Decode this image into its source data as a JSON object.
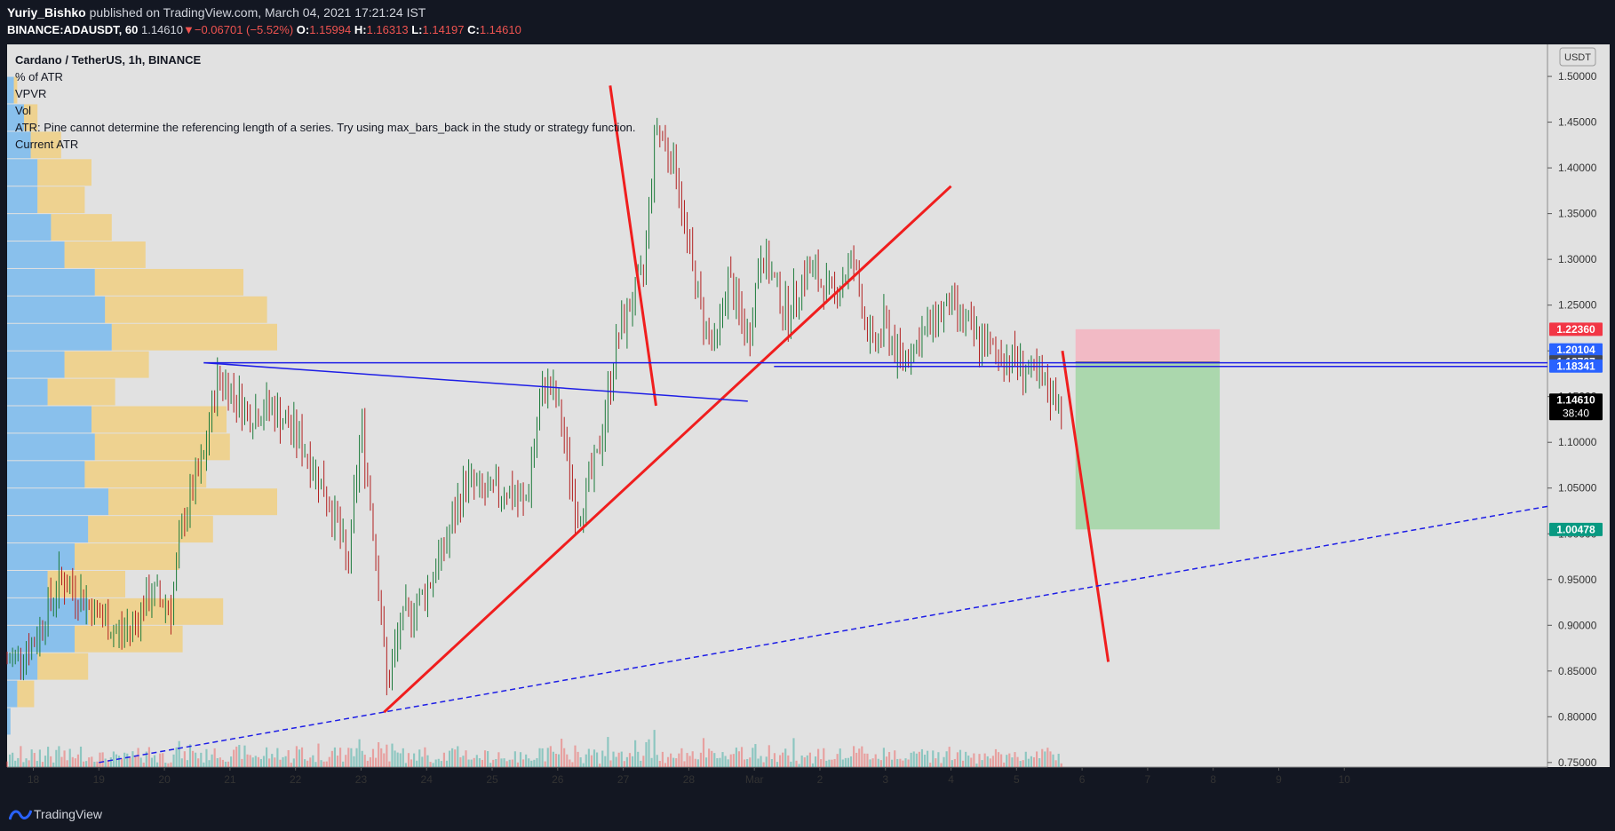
{
  "header": {
    "author": "Yuriy_Bishko",
    "published_text": "published on TradingView.com, March 04, 2021 17:21:24 IST",
    "symbol": "BINANCE:ADAUSDT, 60",
    "last_price": "1.14610",
    "change": "−0.06701 (−5.52%)",
    "o_label": "O:",
    "o_value": "1.15994",
    "h_label": "H:",
    "h_value": "1.16313",
    "l_label": "L:",
    "l_value": "1.14197",
    "c_label": "C:",
    "c_value": "1.14610"
  },
  "legend": {
    "title": "Cardano / TetherUS, 1h, BINANCE",
    "items": [
      "% of ATR",
      "VPVR",
      "Vol",
      "ATR: Pine cannot determine the referencing length of a series. Try using max_bars_back in the study or strategy function.",
      "Current ATR"
    ]
  },
  "footer": {
    "brand": "TradingView",
    "logo_icon": "tradingview-logo-icon"
  },
  "colors": {
    "background": "#e1e1e1",
    "frame": "#131722",
    "up": "#26a69a",
    "down": "#ef5350",
    "trend_red": "#f01e1e",
    "trend_blue": "#1e1ee6",
    "vpvr_up": "#42a5f5",
    "vpvr_down": "#f9c74f",
    "profit_zone": "#a5d6a7",
    "loss_zone": "#f4b6c2"
  },
  "chart_data": {
    "type": "candlestick",
    "interval": "1h",
    "y_axis": {
      "unit": "USDT",
      "range": [
        0.745,
        1.535
      ],
      "ticks": [
        "0.75000",
        "0.80000",
        "0.85000",
        "0.90000",
        "0.95000",
        "1.00000",
        "1.05000",
        "1.10000",
        "1.15000",
        "1.20000",
        "1.25000",
        "1.30000",
        "1.35000",
        "1.40000",
        "1.45000",
        "1.50000"
      ]
    },
    "x_axis": {
      "range_days": [
        17.6,
        41.1
      ],
      "ticks": [
        "18",
        "19",
        "20",
        "21",
        "22",
        "23",
        "24",
        "25",
        "26",
        "27",
        "28",
        "Mar",
        "2",
        "3",
        "4",
        "5",
        "6",
        "7",
        "8",
        "9",
        "10"
      ],
      "tick_days": [
        18,
        19,
        20,
        21,
        22,
        23,
        24,
        25,
        26,
        27,
        28,
        29,
        30,
        31,
        32,
        33,
        34,
        35,
        36,
        37,
        38
      ]
    },
    "price_path": [
      [
        17.6,
        0.86
      ],
      [
        18.0,
        0.88
      ],
      [
        18.4,
        0.95
      ],
      [
        18.7,
        0.935
      ],
      [
        19.0,
        0.91
      ],
      [
        19.3,
        0.89
      ],
      [
        19.5,
        0.9
      ],
      [
        19.8,
        0.935
      ],
      [
        20.1,
        0.92
      ],
      [
        20.3,
        1.02
      ],
      [
        20.6,
        1.08
      ],
      [
        20.8,
        1.17
      ],
      [
        21.0,
        1.16
      ],
      [
        21.3,
        1.13
      ],
      [
        21.6,
        1.14
      ],
      [
        22.0,
        1.11
      ],
      [
        22.3,
        1.07
      ],
      [
        22.6,
        1.02
      ],
      [
        22.8,
        0.96
      ],
      [
        23.0,
        1.12
      ],
      [
        23.2,
        1.0
      ],
      [
        23.4,
        0.83
      ],
      [
        23.6,
        0.9
      ],
      [
        24.0,
        0.94
      ],
      [
        24.3,
        0.99
      ],
      [
        24.6,
        1.06
      ],
      [
        24.9,
        1.04
      ],
      [
        25.2,
        1.05
      ],
      [
        25.5,
        1.03
      ],
      [
        25.8,
        1.17
      ],
      [
        26.0,
        1.14
      ],
      [
        26.3,
        1.02
      ],
      [
        26.6,
        1.08
      ],
      [
        26.9,
        1.21
      ],
      [
        27.1,
        1.25
      ],
      [
        27.3,
        1.28
      ],
      [
        27.5,
        1.45
      ],
      [
        27.8,
        1.4
      ],
      [
        28.0,
        1.31
      ],
      [
        28.2,
        1.24
      ],
      [
        28.4,
        1.2
      ],
      [
        28.6,
        1.28
      ],
      [
        28.9,
        1.21
      ],
      [
        29.1,
        1.31
      ],
      [
        29.5,
        1.24
      ],
      [
        29.8,
        1.29
      ],
      [
        30.2,
        1.26
      ],
      [
        30.5,
        1.3
      ],
      [
        30.8,
        1.2
      ],
      [
        31.0,
        1.23
      ],
      [
        31.2,
        1.19
      ],
      [
        31.5,
        1.21
      ],
      [
        31.8,
        1.24
      ],
      [
        32.0,
        1.25
      ],
      [
        32.3,
        1.22
      ],
      [
        32.6,
        1.2
      ],
      [
        33.0,
        1.19
      ],
      [
        33.4,
        1.16
      ],
      [
        33.7,
        1.146
      ]
    ],
    "volume_profile": [
      {
        "price": 1.485,
        "up": 0.02,
        "down": 0.01
      },
      {
        "price": 1.455,
        "up": 0.05,
        "down": 0.04
      },
      {
        "price": 1.425,
        "up": 0.07,
        "down": 0.09
      },
      {
        "price": 1.395,
        "up": 0.09,
        "down": 0.16
      },
      {
        "price": 1.365,
        "up": 0.09,
        "down": 0.14
      },
      {
        "price": 1.335,
        "up": 0.13,
        "down": 0.18
      },
      {
        "price": 1.305,
        "up": 0.17,
        "down": 0.24
      },
      {
        "price": 1.275,
        "up": 0.26,
        "down": 0.44
      },
      {
        "price": 1.245,
        "up": 0.29,
        "down": 0.48
      },
      {
        "price": 1.215,
        "up": 0.31,
        "down": 0.49
      },
      {
        "price": 1.185,
        "up": 0.17,
        "down": 0.25
      },
      {
        "price": 1.155,
        "up": 0.12,
        "down": 0.2
      },
      {
        "price": 1.125,
        "up": 0.25,
        "down": 0.4
      },
      {
        "price": 1.095,
        "up": 0.26,
        "down": 0.4
      },
      {
        "price": 1.065,
        "up": 0.23,
        "down": 0.36
      },
      {
        "price": 1.035,
        "up": 0.3,
        "down": 0.5
      },
      {
        "price": 1.005,
        "up": 0.24,
        "down": 0.37
      },
      {
        "price": 0.975,
        "up": 0.2,
        "down": 0.31
      },
      {
        "price": 0.945,
        "up": 0.12,
        "down": 0.23
      },
      {
        "price": 0.915,
        "up": 0.24,
        "down": 0.4
      },
      {
        "price": 0.885,
        "up": 0.2,
        "down": 0.32
      },
      {
        "price": 0.855,
        "up": 0.09,
        "down": 0.15
      },
      {
        "price": 0.825,
        "up": 0.03,
        "down": 0.05
      },
      {
        "price": 0.795,
        "up": 0.01,
        "down": 0.0
      }
    ],
    "trend_lines": [
      {
        "color": "red",
        "style": "solid",
        "from": [
          23.35,
          0.805
        ],
        "to": [
          32.0,
          1.38
        ]
      },
      {
        "color": "red",
        "style": "solid",
        "from": [
          26.8,
          1.49
        ],
        "to": [
          27.5,
          1.14
        ]
      },
      {
        "color": "red",
        "style": "solid",
        "from": [
          33.7,
          1.2
        ],
        "to": [
          34.4,
          0.86
        ]
      },
      {
        "color": "blue",
        "style": "solid",
        "from": [
          20.6,
          1.187
        ],
        "to": [
          41.1,
          1.187
        ]
      },
      {
        "color": "blue",
        "style": "solid",
        "from": [
          20.6,
          1.187
        ],
        "to": [
          28.9,
          1.145
        ]
      },
      {
        "color": "blue",
        "style": "solid",
        "from": [
          29.3,
          1.183
        ],
        "to": [
          41.1,
          1.183
        ]
      },
      {
        "color": "blue",
        "style": "dashed",
        "from": [
          19.0,
          0.75
        ],
        "to": [
          41.1,
          1.03
        ]
      }
    ],
    "position": {
      "type": "short",
      "entry": 1.18787,
      "stop": 1.2236,
      "target": 1.00478,
      "from_day": 33.9,
      "to_day": 36.1
    },
    "price_labels": [
      {
        "value": 1.2236,
        "text": "1.22360",
        "bg": "#f23645"
      },
      {
        "value": 1.20104,
        "text": "1.20104",
        "bg": "#2962ff"
      },
      {
        "value": 1.18787,
        "text": "1.18787",
        "bg": "#434651"
      },
      {
        "value": 1.18341,
        "text": "1.18341",
        "bg": "#2962ff"
      },
      {
        "value": 1.1461,
        "text": "1.14610",
        "sub": "38:40",
        "bg": "#000000"
      },
      {
        "value": 1.00478,
        "text": "1.00478",
        "bg": "#089981"
      }
    ],
    "volume_max": 1.0
  }
}
